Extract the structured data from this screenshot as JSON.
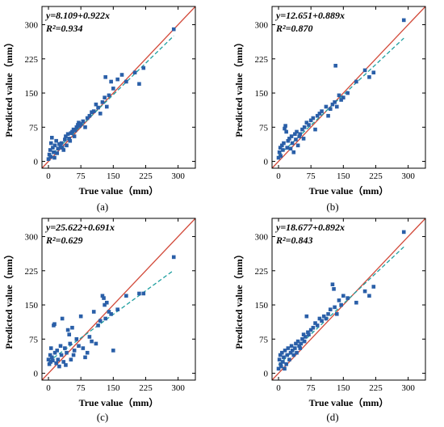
{
  "chart_data": [
    {
      "type": "scatter",
      "caption": "(a)",
      "equation": "y=8.109+0.922x",
      "r2": "R²=0.934",
      "xlabel": "True value（mm）",
      "ylabel": "Predicted value（mm）",
      "xlim": [
        -15,
        340
      ],
      "ylim": [
        -15,
        340
      ],
      "xticks": [
        0,
        75,
        150,
        225,
        300
      ],
      "yticks": [
        0,
        75,
        150,
        225,
        300
      ],
      "fit": {
        "intercept": 8.109,
        "slope": 0.922
      },
      "colors": {
        "points": "#2a5fa8",
        "line11": "#d24a3a",
        "fit": "#1f9fa0"
      },
      "points": [
        [
          0,
          5
        ],
        [
          2,
          15
        ],
        [
          4,
          25
        ],
        [
          5,
          10
        ],
        [
          6,
          40
        ],
        [
          8,
          52
        ],
        [
          10,
          30
        ],
        [
          12,
          20
        ],
        [
          14,
          8
        ],
        [
          15,
          35
        ],
        [
          18,
          45
        ],
        [
          20,
          18
        ],
        [
          22,
          28
        ],
        [
          25,
          38
        ],
        [
          28,
          32
        ],
        [
          30,
          40
        ],
        [
          32,
          30
        ],
        [
          35,
          25
        ],
        [
          38,
          48
        ],
        [
          40,
          55
        ],
        [
          42,
          35
        ],
        [
          45,
          60
        ],
        [
          48,
          50
        ],
        [
          50,
          45
        ],
        [
          52,
          62
        ],
        [
          55,
          65
        ],
        [
          58,
          70
        ],
        [
          60,
          55
        ],
        [
          62,
          68
        ],
        [
          65,
          75
        ],
        [
          68,
          80
        ],
        [
          70,
          85
        ],
        [
          72,
          78
        ],
        [
          75,
          82
        ],
        [
          80,
          88
        ],
        [
          85,
          75
        ],
        [
          90,
          95
        ],
        [
          95,
          100
        ],
        [
          100,
          108
        ],
        [
          105,
          110
        ],
        [
          110,
          125
        ],
        [
          115,
          118
        ],
        [
          120,
          105
        ],
        [
          125,
          130
        ],
        [
          130,
          140
        ],
        [
          132,
          185
        ],
        [
          135,
          120
        ],
        [
          140,
          145
        ],
        [
          145,
          175
        ],
        [
          150,
          160
        ],
        [
          160,
          180
        ],
        [
          170,
          190
        ],
        [
          180,
          175
        ],
        [
          200,
          195
        ],
        [
          210,
          170
        ],
        [
          220,
          205
        ],
        [
          290,
          290
        ]
      ]
    },
    {
      "type": "scatter",
      "caption": "(b)",
      "equation": "y=12.651+0.889x",
      "r2": "R²=0.870",
      "xlabel": "True value（mm）",
      "ylabel": "Predicted value（mm）",
      "xlim": [
        -15,
        340
      ],
      "ylim": [
        -15,
        340
      ],
      "xticks": [
        0,
        75,
        150,
        225,
        300
      ],
      "yticks": [
        0,
        75,
        150,
        225,
        300
      ],
      "fit": {
        "intercept": 12.651,
        "slope": 0.889
      },
      "colors": {
        "points": "#2a5fa8",
        "line11": "#d24a3a",
        "fit": "#1f9fa0"
      },
      "points": [
        [
          0,
          8
        ],
        [
          2,
          20
        ],
        [
          4,
          30
        ],
        [
          5,
          12
        ],
        [
          8,
          35
        ],
        [
          10,
          25
        ],
        [
          12,
          40
        ],
        [
          14,
          72
        ],
        [
          16,
          78
        ],
        [
          18,
          65
        ],
        [
          20,
          30
        ],
        [
          22,
          45
        ],
        [
          25,
          50
        ],
        [
          28,
          28
        ],
        [
          30,
          55
        ],
        [
          32,
          40
        ],
        [
          35,
          20
        ],
        [
          38,
          60
        ],
        [
          40,
          48
        ],
        [
          42,
          65
        ],
        [
          45,
          35
        ],
        [
          48,
          55
        ],
        [
          50,
          60
        ],
        [
          55,
          70
        ],
        [
          58,
          50
        ],
        [
          60,
          75
        ],
        [
          65,
          85
        ],
        [
          70,
          80
        ],
        [
          75,
          90
        ],
        [
          80,
          95
        ],
        [
          85,
          70
        ],
        [
          90,
          100
        ],
        [
          95,
          105
        ],
        [
          100,
          110
        ],
        [
          110,
          120
        ],
        [
          115,
          100
        ],
        [
          120,
          115
        ],
        [
          125,
          125
        ],
        [
          130,
          130
        ],
        [
          132,
          210
        ],
        [
          135,
          120
        ],
        [
          140,
          145
        ],
        [
          145,
          135
        ],
        [
          150,
          140
        ],
        [
          160,
          150
        ],
        [
          180,
          175
        ],
        [
          200,
          200
        ],
        [
          210,
          185
        ],
        [
          220,
          195
        ],
        [
          290,
          310
        ]
      ]
    },
    {
      "type": "scatter",
      "caption": "(c)",
      "equation": "y=25.622+0.691x",
      "r2": "R²=0.629",
      "xlabel": "True value（mm）",
      "ylabel": "Predicted value（mm）",
      "xlim": [
        -15,
        340
      ],
      "ylim": [
        -15,
        340
      ],
      "xticks": [
        0,
        75,
        150,
        225,
        300
      ],
      "yticks": [
        0,
        75,
        150,
        225,
        300
      ],
      "fit": {
        "intercept": 25.622,
        "slope": 0.691
      },
      "colors": {
        "points": "#2a5fa8",
        "line11": "#d24a3a",
        "fit": "#1f9fa0"
      },
      "points": [
        [
          0,
          30
        ],
        [
          2,
          20
        ],
        [
          4,
          40
        ],
        [
          5,
          25
        ],
        [
          6,
          55
        ],
        [
          8,
          35
        ],
        [
          10,
          28
        ],
        [
          12,
          105
        ],
        [
          14,
          108
        ],
        [
          15,
          45
        ],
        [
          18,
          22
        ],
        [
          20,
          50
        ],
        [
          22,
          30
        ],
        [
          25,
          15
        ],
        [
          28,
          60
        ],
        [
          30,
          40
        ],
        [
          32,
          120
        ],
        [
          35,
          25
        ],
        [
          38,
          55
        ],
        [
          40,
          18
        ],
        [
          42,
          45
        ],
        [
          45,
          95
        ],
        [
          48,
          85
        ],
        [
          50,
          65
        ],
        [
          52,
          30
        ],
        [
          55,
          100
        ],
        [
          58,
          40
        ],
        [
          60,
          50
        ],
        [
          65,
          75
        ],
        [
          70,
          60
        ],
        [
          75,
          125
        ],
        [
          80,
          55
        ],
        [
          85,
          35
        ],
        [
          90,
          45
        ],
        [
          95,
          80
        ],
        [
          100,
          70
        ],
        [
          105,
          135
        ],
        [
          110,
          65
        ],
        [
          115,
          105
        ],
        [
          120,
          115
        ],
        [
          125,
          170
        ],
        [
          128,
          165
        ],
        [
          130,
          150
        ],
        [
          132,
          120
        ],
        [
          135,
          155
        ],
        [
          140,
          135
        ],
        [
          145,
          130
        ],
        [
          150,
          50
        ],
        [
          160,
          140
        ],
        [
          180,
          170
        ],
        [
          210,
          175
        ],
        [
          220,
          175
        ],
        [
          290,
          255
        ]
      ]
    },
    {
      "type": "scatter",
      "caption": "(d)",
      "equation": "y=18.677+0.892x",
      "r2": "R²=0.843",
      "xlabel": "True value（mm）",
      "ylabel": "Predicted value（mm）",
      "xlim": [
        -15,
        340
      ],
      "ylim": [
        -15,
        340
      ],
      "xticks": [
        0,
        75,
        150,
        225,
        300
      ],
      "yticks": [
        0,
        75,
        150,
        225,
        300
      ],
      "fit": {
        "intercept": 18.677,
        "slope": 0.892
      },
      "colors": {
        "points": "#2a5fa8",
        "line11": "#d24a3a",
        "fit": "#1f9fa0"
      },
      "points": [
        [
          0,
          10
        ],
        [
          2,
          30
        ],
        [
          4,
          40
        ],
        [
          5,
          20
        ],
        [
          6,
          15
        ],
        [
          8,
          45
        ],
        [
          10,
          25
        ],
        [
          12,
          35
        ],
        [
          14,
          10
        ],
        [
          15,
          50
        ],
        [
          18,
          20
        ],
        [
          20,
          40
        ],
        [
          22,
          55
        ],
        [
          25,
          30
        ],
        [
          28,
          45
        ],
        [
          30,
          60
        ],
        [
          32,
          50
        ],
        [
          35,
          40
        ],
        [
          38,
          55
        ],
        [
          40,
          65
        ],
        [
          42,
          45
        ],
        [
          45,
          70
        ],
        [
          48,
          60
        ],
        [
          50,
          55
        ],
        [
          52,
          65
        ],
        [
          55,
          75
        ],
        [
          58,
          85
        ],
        [
          60,
          70
        ],
        [
          62,
          80
        ],
        [
          65,
          125
        ],
        [
          68,
          90
        ],
        [
          70,
          85
        ],
        [
          75,
          95
        ],
        [
          80,
          100
        ],
        [
          85,
          110
        ],
        [
          90,
          105
        ],
        [
          95,
          120
        ],
        [
          100,
          115
        ],
        [
          105,
          125
        ],
        [
          110,
          120
        ],
        [
          115,
          130
        ],
        [
          120,
          140
        ],
        [
          125,
          195
        ],
        [
          128,
          185
        ],
        [
          130,
          145
        ],
        [
          135,
          130
        ],
        [
          140,
          160
        ],
        [
          145,
          150
        ],
        [
          150,
          170
        ],
        [
          160,
          165
        ],
        [
          180,
          155
        ],
        [
          200,
          180
        ],
        [
          210,
          170
        ],
        [
          220,
          190
        ],
        [
          290,
          310
        ]
      ]
    }
  ]
}
